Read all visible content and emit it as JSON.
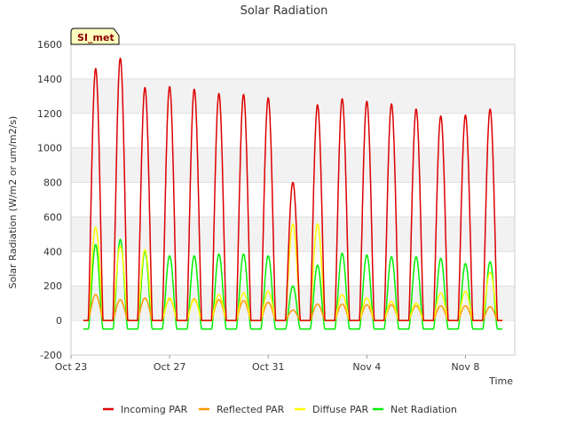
{
  "chart_data": {
    "type": "line",
    "title": "Solar Radiation",
    "xlabel": "Time",
    "ylabel": "Solar Radiation (W/m2 or um/m2/s)",
    "site_label": "SI_met",
    "ylim": [
      -200,
      1600
    ],
    "yticks": [
      -200,
      0,
      200,
      400,
      600,
      800,
      1000,
      1200,
      1400,
      1600
    ],
    "xlim": [
      0,
      18
    ],
    "xticks": [
      {
        "day": 0,
        "label": "Oct 23"
      },
      {
        "day": 4,
        "label": "Oct 27"
      },
      {
        "day": 8,
        "label": "Oct 31"
      },
      {
        "day": 12,
        "label": "Nov 4"
      },
      {
        "day": 16,
        "label": "Nov 8"
      }
    ],
    "day_range": [
      0.5,
      17.5
    ],
    "series": [
      {
        "name": "Incoming PAR",
        "color": "#dd0000",
        "daily_peaks": [
          1460,
          1520,
          1350,
          1355,
          1340,
          1315,
          1310,
          1290,
          800,
          1250,
          1285,
          1270,
          1255,
          1225,
          1185,
          1190,
          1225
        ]
      },
      {
        "name": "Reflected PAR",
        "color": "#ff9900",
        "daily_peaks": [
          150,
          120,
          130,
          125,
          125,
          120,
          115,
          105,
          60,
          95,
          95,
          90,
          90,
          85,
          85,
          85,
          80
        ]
      },
      {
        "name": "Diffuse PAR",
        "color": "#ffff00",
        "daily_peaks": [
          540,
          430,
          410,
          130,
          120,
          150,
          160,
          170,
          560,
          560,
          150,
          130,
          110,
          100,
          160,
          170,
          280
        ]
      },
      {
        "name": "Net Radiation",
        "color": "#00ee00",
        "daily_peaks": [
          440,
          470,
          400,
          375,
          375,
          385,
          385,
          375,
          200,
          320,
          390,
          380,
          370,
          370,
          360,
          330,
          340
        ],
        "night_value": -50
      }
    ],
    "legend": [
      "Incoming PAR",
      "Reflected PAR",
      "Diffuse PAR",
      "Net Radiation"
    ]
  }
}
